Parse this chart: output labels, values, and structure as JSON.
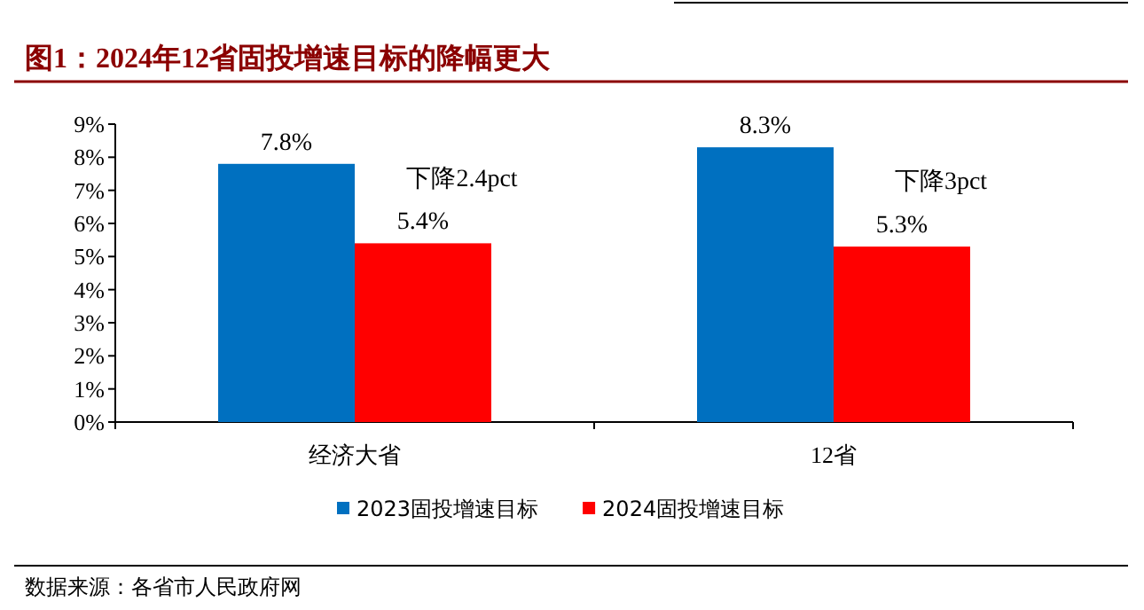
{
  "chart_data": {
    "type": "bar",
    "title": "图1：2024年12省固投增速目标的降幅更大",
    "categories": [
      "经济大省",
      "12省"
    ],
    "series": [
      {
        "name": "2023固投增速目标",
        "color": "#0070c0",
        "values": [
          7.8,
          8.3
        ],
        "value_labels": [
          "7.8%",
          "8.3%"
        ]
      },
      {
        "name": "2024固投增速目标",
        "color": "#ff0000",
        "values": [
          5.4,
          5.3
        ],
        "value_labels": [
          "5.4%",
          "5.3%"
        ]
      }
    ],
    "ylim": [
      0,
      9
    ],
    "yticks": [
      {
        "value": 0,
        "label": "0%"
      },
      {
        "value": 1,
        "label": "1%"
      },
      {
        "value": 2,
        "label": "2%"
      },
      {
        "value": 3,
        "label": "3%"
      },
      {
        "value": 4,
        "label": "4%"
      },
      {
        "value": 5,
        "label": "5%"
      },
      {
        "value": 6,
        "label": "6%"
      },
      {
        "value": 7,
        "label": "7%"
      },
      {
        "value": 8,
        "label": "8%"
      },
      {
        "value": 9,
        "label": "9%"
      }
    ],
    "legend": "bottom",
    "grid": false,
    "annotations": [
      {
        "text": "下降2.4pct",
        "x": "经济大省",
        "y": 7.4
      },
      {
        "text": "下降3pct",
        "x": "12省",
        "y": 7.3
      },
      "数据来源：各省市人民政府网"
    ]
  }
}
